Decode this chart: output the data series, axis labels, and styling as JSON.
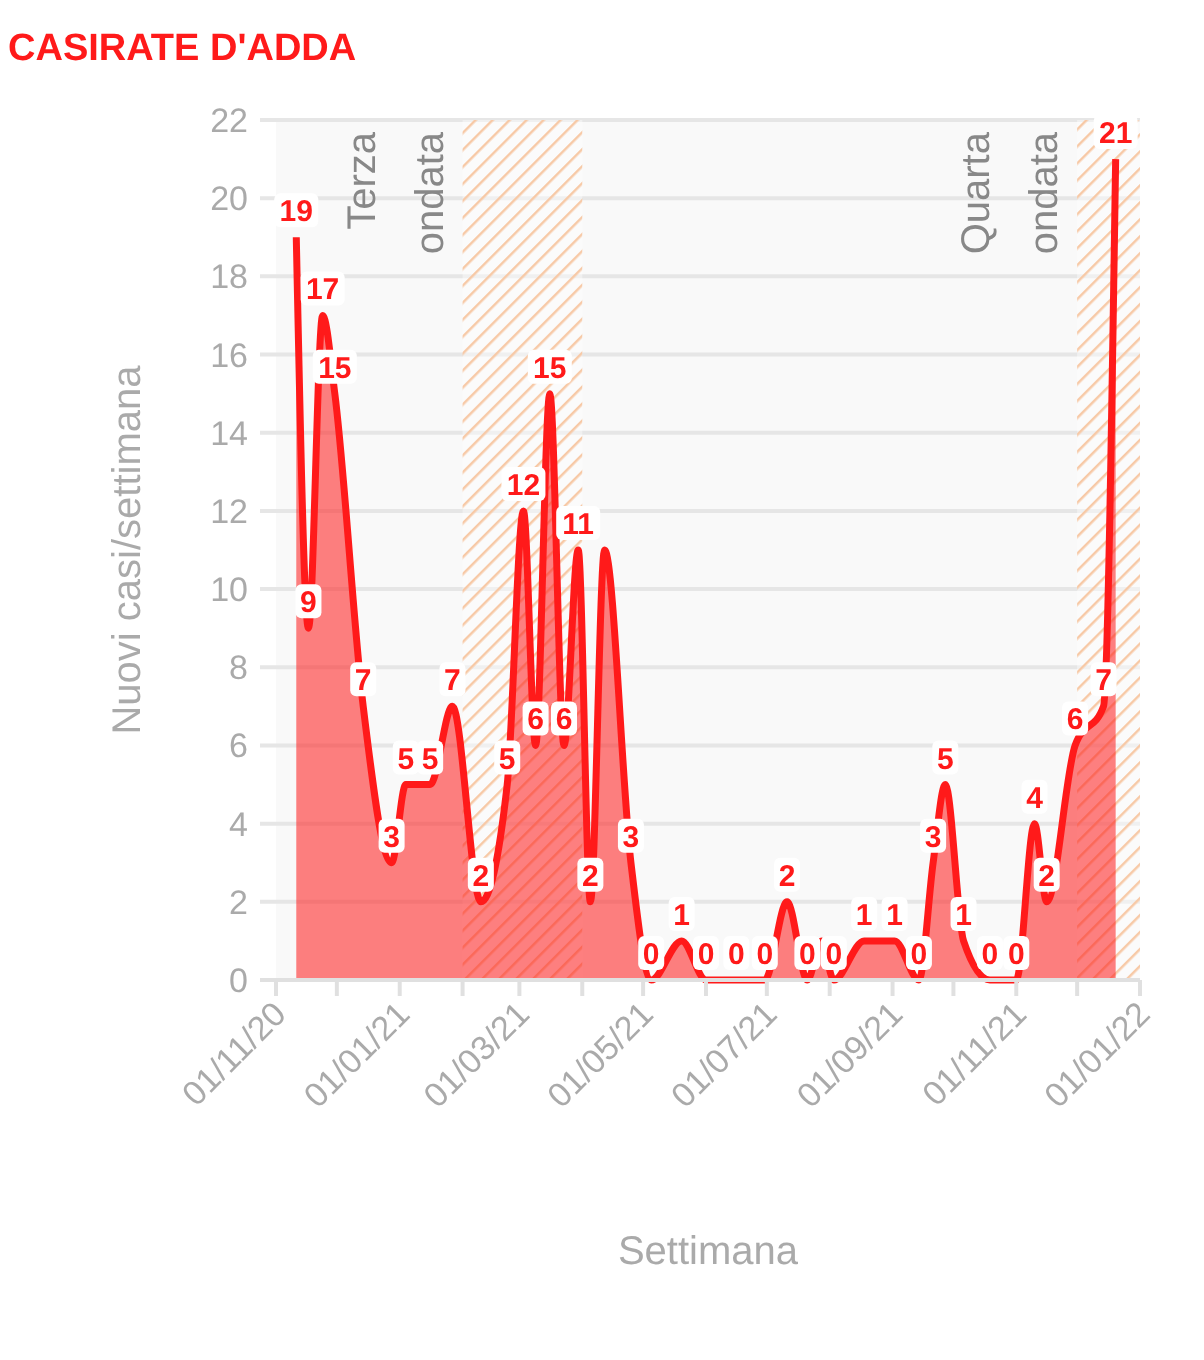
{
  "chart_data": {
    "type": "area",
    "title": "CASIRATE D'ADDA",
    "xlabel": "Settimana",
    "ylabel": "Nuovi casi/settimana",
    "x": [
      "2020-11-11",
      "2020-11-17",
      "2020-11-24",
      "2020-11-30",
      "2020-12-14",
      "2020-12-28",
      "2021-01-04",
      "2021-01-16",
      "2021-01-27",
      "2021-02-10",
      "2021-02-23",
      "2021-03-03",
      "2021-03-09",
      "2021-03-16",
      "2021-03-23",
      "2021-03-30",
      "2021-04-05",
      "2021-04-12",
      "2021-04-25",
      "2021-05-05",
      "2021-05-20",
      "2021-06-01",
      "2021-06-16",
      "2021-06-30",
      "2021-07-11",
      "2021-07-21",
      "2021-07-28",
      "2021-08-03",
      "2021-08-18",
      "2021-09-02",
      "2021-09-14",
      "2021-09-21",
      "2021-09-27",
      "2021-10-06",
      "2021-10-19",
      "2021-11-01",
      "2021-11-10",
      "2021-11-16",
      "2021-11-30",
      "2021-12-14",
      "2021-12-20"
    ],
    "series": [
      {
        "color": "#ff1a1a",
        "values": [
          19,
          9,
          17,
          15,
          7,
          3,
          5,
          5,
          7,
          2,
          5,
          12,
          6,
          15,
          6,
          11,
          2,
          11,
          3,
          0,
          1,
          0,
          0,
          0,
          2,
          0,
          1,
          0,
          1,
          1,
          0,
          3,
          5,
          1,
          0,
          0,
          4,
          2,
          6,
          7,
          21
        ],
        "value_labels": [
          "19",
          "9",
          "17",
          "15",
          "7",
          "3",
          "5",
          "5",
          "7",
          "2",
          "5",
          "12",
          "6",
          "15",
          "6",
          "11",
          "2",
          null,
          "3",
          "0",
          "1",
          "0",
          "0",
          "0",
          "2",
          "0",
          null,
          "0",
          "1",
          "1",
          "0",
          "3",
          "5",
          "1",
          "0",
          "0",
          "4",
          "2",
          "6",
          "7",
          "21"
        ]
      }
    ],
    "xlim": [
      "2020-11-01",
      "2022-01-01"
    ],
    "xticks": [
      {
        "value": "2020-11-01",
        "label": "01/11/20"
      },
      {
        "value": "2020-12-01",
        "label": null
      },
      {
        "value": "2021-01-01",
        "label": "01/01/21"
      },
      {
        "value": "2021-02-01",
        "label": null
      },
      {
        "value": "2021-03-01",
        "label": "01/03/21"
      },
      {
        "value": "2021-04-01",
        "label": null
      },
      {
        "value": "2021-05-01",
        "label": "01/05/21"
      },
      {
        "value": "2021-06-01",
        "label": null
      },
      {
        "value": "2021-07-01",
        "label": "01/07/21"
      },
      {
        "value": "2021-08-01",
        "label": null
      },
      {
        "value": "2021-09-01",
        "label": "01/09/21"
      },
      {
        "value": "2021-10-01",
        "label": null
      },
      {
        "value": "2021-11-01",
        "label": "01/11/21"
      },
      {
        "value": "2021-12-01",
        "label": null
      },
      {
        "value": "2022-01-01",
        "label": "01/01/22"
      }
    ],
    "ylim": [
      0,
      22
    ],
    "yticks": [
      0,
      2,
      4,
      6,
      8,
      10,
      12,
      14,
      16,
      18,
      20,
      22
    ],
    "grid": "y",
    "bands": [
      {
        "axis": "x",
        "from": "2021-02-01",
        "to": "2021-04-01",
        "label": "Terza ondata",
        "color": "#f7c9a6"
      },
      {
        "axis": "x",
        "from": "2021-12-01",
        "to": "2022-01-01",
        "label": "Quarta ondata",
        "color": "#f7c9a6"
      }
    ]
  }
}
